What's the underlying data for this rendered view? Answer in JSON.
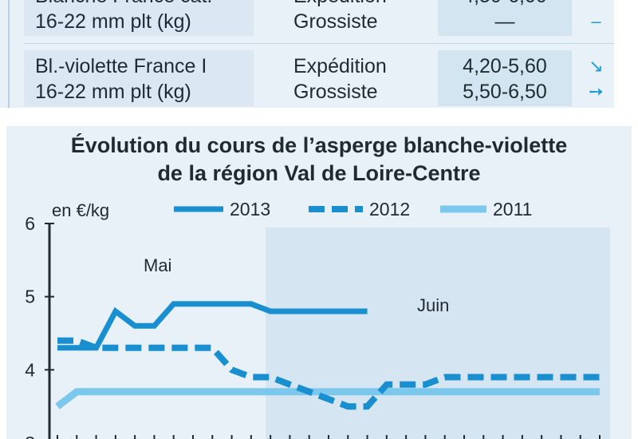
{
  "table": {
    "rows": [
      {
        "product_lines": [
          "Blanche France cat.",
          "16-22 mm plt (kg)"
        ],
        "stages": [
          "Expédition",
          "Grossiste"
        ],
        "prices": [
          "4,50-6,00",
          "—"
        ],
        "trends": [
          "➙",
          "–"
        ]
      },
      {
        "product_lines": [
          "Bl.-violette France I",
          "16-22 mm plt (kg)"
        ],
        "stages": [
          "Expédition",
          "Grossiste"
        ],
        "prices": [
          "4,20-5,60",
          "5,50-6,50"
        ],
        "trends": [
          "↘",
          "➙"
        ]
      }
    ]
  },
  "chart_data": {
    "type": "line",
    "title_lines": [
      "Évolution du cours de l’asperge blanche-violette",
      "de la région Val de Loire-Centre"
    ],
    "ylabel": "en €/kg",
    "ylim": [
      3,
      6
    ],
    "y_ticks": [
      3,
      4,
      5,
      6
    ],
    "x_count": 29,
    "periods": [
      {
        "label": "Mai",
        "start": 0,
        "end": 11
      },
      {
        "label": "Juin",
        "start": 11,
        "end": 28
      }
    ],
    "legend_position": "top",
    "series": [
      {
        "name": "2013",
        "style": "solid",
        "color": "#1a8fd0",
        "values": [
          4.3,
          4.3,
          4.3,
          4.8,
          4.6,
          4.6,
          4.9,
          4.9,
          4.9,
          4.9,
          4.9,
          4.8,
          4.8,
          4.8,
          4.8,
          4.8,
          4.8
        ]
      },
      {
        "name": "2012",
        "style": "dashed",
        "color": "#1a8fd0",
        "values": [
          4.4,
          4.4,
          4.3,
          4.3,
          4.3,
          4.3,
          4.3,
          4.3,
          4.3,
          4.0,
          3.9,
          3.9,
          3.8,
          3.7,
          3.6,
          3.5,
          3.5,
          3.8,
          3.8,
          3.8,
          3.9,
          3.9,
          3.9,
          3.9,
          3.9,
          3.9,
          3.9,
          3.9,
          3.9
        ]
      },
      {
        "name": "2011",
        "style": "solid-light",
        "color": "#7cc7ec",
        "values": [
          3.5,
          3.7,
          3.7,
          3.7,
          3.7,
          3.7,
          3.7,
          3.7,
          3.7,
          3.7,
          3.7,
          3.7,
          3.7,
          3.7,
          3.7,
          3.7,
          3.7,
          3.7,
          3.7,
          3.7,
          3.7,
          3.7,
          3.7,
          3.7,
          3.7,
          3.7,
          3.7,
          3.7,
          3.7
        ]
      }
    ]
  }
}
